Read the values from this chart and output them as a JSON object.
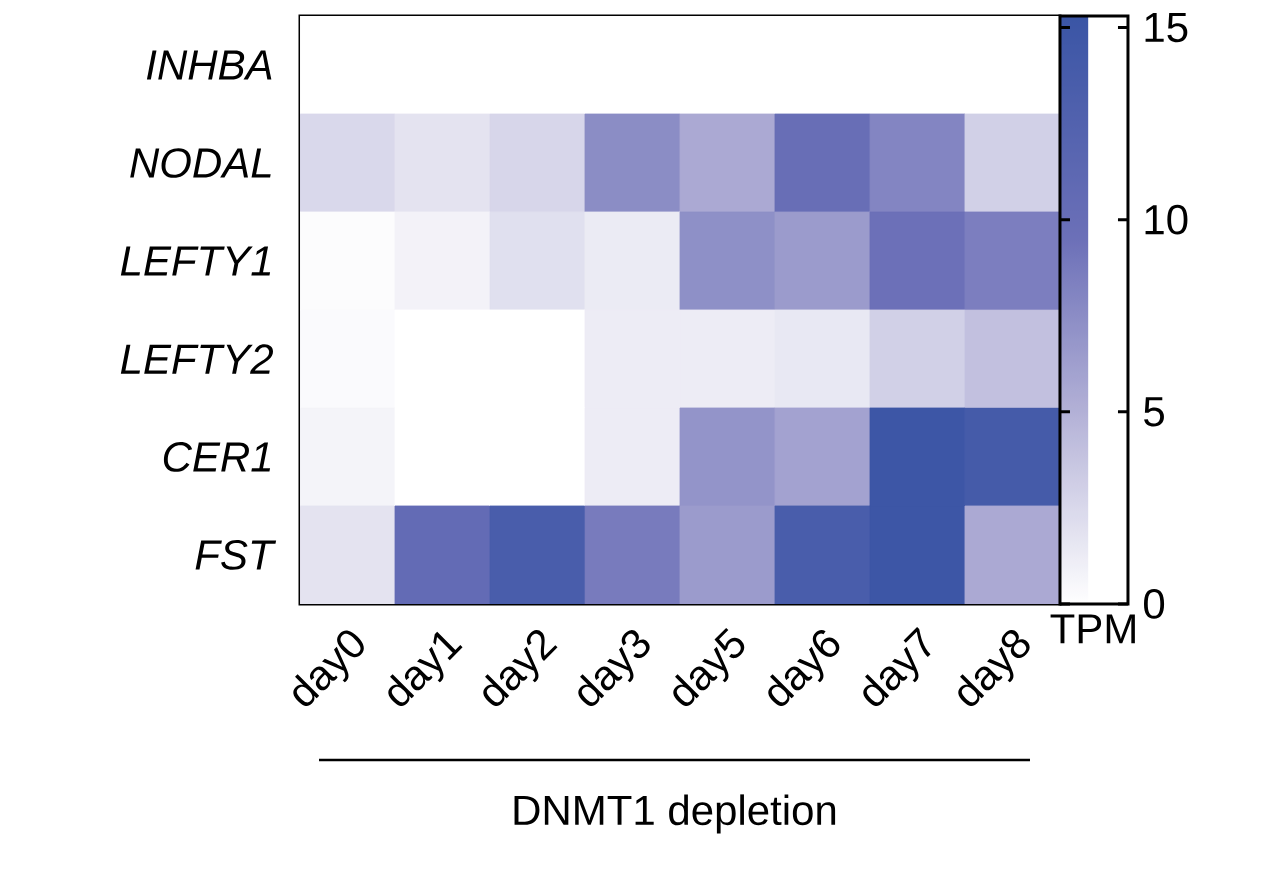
{
  "chart_data": {
    "type": "heatmap",
    "categories": [
      "day0",
      "day1",
      "day2",
      "day3",
      "day5",
      "day6",
      "day7",
      "day8"
    ],
    "y_categories": [
      "INHBA",
      "NODAL",
      "LEFTY1",
      "LEFTY2",
      "CER1",
      "FST"
    ],
    "cells": [
      [
        0,
        0,
        0,
        0,
        0,
        0,
        0,
        0
      ],
      [
        2.5,
        1.8,
        2.6,
        7.5,
        5.5,
        10,
        8,
        3
      ],
      [
        0.2,
        0.8,
        2,
        1.3,
        7.3,
        6.5,
        9.5,
        8.5
      ],
      [
        0.3,
        0,
        0,
        1.2,
        1.2,
        1.5,
        3,
        4
      ],
      [
        0.7,
        0,
        0,
        1.2,
        7,
        6,
        15,
        14
      ],
      [
        1.8,
        10.5,
        13.5,
        8.7,
        6.5,
        13.5,
        15,
        5.5
      ]
    ],
    "clim": [
      0,
      15.3
    ],
    "cticks": [
      0,
      5,
      10,
      15
    ],
    "clabel": "TPM",
    "annotations": [
      "DNMT1 depletion"
    ]
  }
}
